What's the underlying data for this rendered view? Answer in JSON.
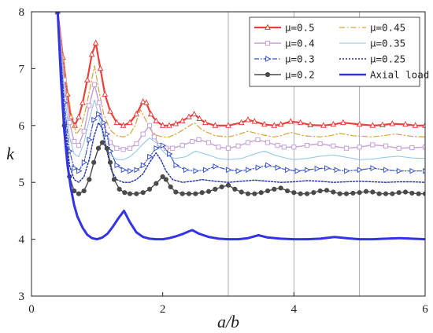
{
  "chart_data": {
    "type": "line",
    "xlabel": "a/b",
    "ylabel": "k",
    "xlim": [
      0,
      6
    ],
    "ylim": [
      3,
      8
    ],
    "x_ticks": [
      0,
      2,
      4,
      6
    ],
    "y_ticks": [
      3,
      4,
      5,
      6,
      7,
      8
    ],
    "x_tick_labels": [
      "0",
      "2",
      "4",
      "6"
    ],
    "y_tick_labels": [
      "3",
      "4",
      "5",
      "6",
      "7",
      "8"
    ],
    "vertical_reference_lines": [
      3,
      4,
      5
    ],
    "legend_position": "top-right",
    "series": [
      {
        "name": "μ=0.5",
        "color": "#e8403c",
        "marker": "triangle",
        "dash": "solid",
        "width": 2.2,
        "x": [
          0.4,
          0.48,
          0.55,
          0.6,
          0.66,
          0.72,
          0.78,
          0.85,
          0.92,
          0.98,
          1.05,
          1.12,
          1.2,
          1.3,
          1.4,
          1.5,
          1.6,
          1.7,
          1.75,
          1.82,
          1.9,
          2.0,
          2.1,
          2.2,
          2.3,
          2.4,
          2.48,
          2.56,
          2.65,
          2.8,
          3.0,
          3.2,
          3.3,
          3.4,
          3.55,
          3.7,
          3.8,
          3.95,
          4.1,
          4.25,
          4.45,
          4.6,
          4.75,
          5.0,
          5.2,
          5.35,
          5.5,
          5.7,
          5.85,
          6.0
        ],
        "y": [
          8.0,
          7.2,
          6.55,
          6.15,
          6.0,
          6.15,
          6.4,
          6.8,
          7.25,
          7.45,
          7.0,
          6.55,
          6.25,
          6.05,
          6.0,
          6.05,
          6.2,
          6.42,
          6.4,
          6.2,
          6.08,
          6.0,
          6.0,
          6.03,
          6.08,
          6.15,
          6.2,
          6.12,
          6.05,
          6.0,
          6.0,
          6.05,
          6.1,
          6.07,
          6.02,
          6.0,
          6.02,
          6.07,
          6.05,
          6.01,
          6.0,
          6.02,
          6.05,
          6.02,
          6.0,
          6.01,
          6.03,
          6.02,
          6.0,
          6.0
        ]
      },
      {
        "name": "μ=0.45",
        "color": "#d6a23c",
        "marker": "none",
        "dash": "7 3 1.5 3",
        "width": 1.2,
        "x": [
          0.4,
          0.5,
          0.6,
          0.68,
          0.75,
          0.82,
          0.9,
          0.96,
          1.03,
          1.1,
          1.2,
          1.3,
          1.4,
          1.5,
          1.58,
          1.66,
          1.74,
          1.82,
          1.9,
          2.0,
          2.1,
          2.2,
          2.35,
          2.48,
          2.6,
          2.8,
          3.0,
          3.15,
          3.3,
          3.5,
          3.7,
          3.8,
          3.95,
          4.15,
          4.4,
          4.55,
          4.7,
          4.9,
          5.2,
          5.35,
          5.55,
          5.8,
          6.0
        ],
        "y": [
          8.0,
          7.0,
          6.25,
          5.85,
          5.95,
          6.25,
          6.7,
          7.05,
          6.6,
          6.2,
          5.92,
          5.82,
          5.8,
          5.85,
          6.0,
          6.28,
          6.1,
          5.92,
          5.83,
          5.8,
          5.8,
          5.85,
          5.95,
          6.05,
          5.92,
          5.82,
          5.8,
          5.84,
          5.9,
          5.84,
          5.8,
          5.82,
          5.88,
          5.82,
          5.8,
          5.82,
          5.86,
          5.82,
          5.8,
          5.82,
          5.85,
          5.81,
          5.8
        ]
      },
      {
        "name": "μ=0.4",
        "color": "#c79fd8",
        "marker": "square",
        "dash": "solid",
        "width": 1.4,
        "x": [
          0.4,
          0.5,
          0.58,
          0.65,
          0.72,
          0.8,
          0.88,
          0.96,
          1.03,
          1.1,
          1.2,
          1.3,
          1.4,
          1.5,
          1.6,
          1.7,
          1.8,
          1.87,
          1.95,
          2.05,
          2.15,
          2.3,
          2.45,
          2.55,
          2.7,
          2.85,
          3.0,
          3.15,
          3.3,
          3.45,
          3.6,
          3.75,
          3.85,
          4.0,
          4.2,
          4.4,
          4.6,
          4.8,
          5.0,
          5.2,
          5.4,
          5.6,
          5.8,
          6.0
        ],
        "y": [
          8.0,
          6.8,
          6.05,
          5.72,
          5.65,
          5.9,
          6.35,
          6.72,
          6.4,
          6.0,
          5.7,
          5.6,
          5.58,
          5.6,
          5.68,
          5.85,
          6.0,
          5.8,
          5.65,
          5.6,
          5.6,
          5.65,
          5.72,
          5.75,
          5.7,
          5.62,
          5.6,
          5.64,
          5.7,
          5.75,
          5.7,
          5.65,
          5.62,
          5.62,
          5.65,
          5.68,
          5.64,
          5.6,
          5.62,
          5.66,
          5.64,
          5.6,
          5.61,
          5.62
        ]
      },
      {
        "name": "μ=0.35",
        "color": "#8ec3e8",
        "marker": "none",
        "dash": "solid",
        "width": 1.0,
        "x": [
          0.4,
          0.5,
          0.58,
          0.65,
          0.72,
          0.8,
          0.88,
          0.96,
          1.03,
          1.1,
          1.2,
          1.3,
          1.4,
          1.5,
          1.6,
          1.7,
          1.8,
          1.9,
          2.0,
          2.1,
          2.2,
          2.35,
          2.5,
          2.7,
          2.85,
          3.0,
          3.2,
          3.4,
          3.55,
          3.7,
          3.9,
          4.0,
          4.2,
          4.4,
          4.6,
          4.8,
          5.0,
          5.2,
          5.4,
          5.6,
          5.8,
          6.0
        ],
        "y": [
          8.0,
          6.6,
          5.8,
          5.5,
          5.45,
          5.7,
          6.1,
          6.45,
          6.15,
          5.75,
          5.48,
          5.4,
          5.4,
          5.45,
          5.55,
          5.68,
          5.78,
          5.7,
          5.55,
          5.45,
          5.42,
          5.45,
          5.55,
          5.48,
          5.42,
          5.4,
          5.42,
          5.5,
          5.55,
          5.48,
          5.42,
          5.4,
          5.42,
          5.46,
          5.48,
          5.44,
          5.4,
          5.41,
          5.44,
          5.46,
          5.43,
          5.42
        ]
      },
      {
        "name": "μ=0.3",
        "color": "#3a56c8",
        "marker": "triangle-right",
        "dash": "6 2 1.5 2",
        "width": 1.2,
        "x": [
          0.4,
          0.5,
          0.58,
          0.65,
          0.72,
          0.8,
          0.88,
          0.95,
          1.02,
          1.1,
          1.15,
          1.2,
          1.3,
          1.4,
          1.5,
          1.6,
          1.7,
          1.8,
          1.9,
          2.0,
          2.1,
          2.2,
          2.35,
          2.5,
          2.65,
          2.8,
          3.0,
          3.15,
          3.3,
          3.45,
          3.6,
          3.75,
          3.9,
          4.05,
          4.2,
          4.35,
          4.5,
          4.65,
          4.8,
          5.0,
          5.2,
          5.4,
          5.6,
          5.8,
          6.0
        ],
        "y": [
          8.0,
          6.4,
          5.55,
          5.25,
          5.2,
          5.35,
          5.75,
          6.1,
          6.2,
          6.05,
          5.85,
          5.55,
          5.3,
          5.22,
          5.2,
          5.22,
          5.3,
          5.45,
          5.6,
          5.65,
          5.5,
          5.3,
          5.22,
          5.2,
          5.22,
          5.28,
          5.22,
          5.2,
          5.22,
          5.26,
          5.3,
          5.26,
          5.22,
          5.2,
          5.22,
          5.24,
          5.25,
          5.22,
          5.2,
          5.22,
          5.25,
          5.22,
          5.2,
          5.2,
          5.2
        ]
      },
      {
        "name": "μ=0.25",
        "color": "#1f2fa8",
        "marker": "none",
        "dash": "2 2",
        "width": 1.4,
        "x": [
          0.4,
          0.5,
          0.58,
          0.65,
          0.72,
          0.8,
          0.88,
          0.95,
          1.02,
          1.08,
          1.15,
          1.22,
          1.3,
          1.4,
          1.5,
          1.6,
          1.7,
          1.8,
          1.9,
          1.97,
          2.05,
          2.15,
          2.3,
          2.45,
          2.6,
          2.8,
          3.0,
          3.2,
          3.4,
          3.6,
          3.8,
          4.0,
          4.2,
          4.4,
          4.6,
          4.8,
          5.0,
          5.2,
          5.4,
          5.6,
          5.8,
          6.0
        ],
        "y": [
          8.0,
          6.2,
          5.3,
          5.05,
          5.0,
          5.1,
          5.4,
          5.8,
          6.05,
          5.95,
          5.55,
          5.2,
          5.05,
          5.0,
          5.0,
          5.05,
          5.15,
          5.35,
          5.52,
          5.4,
          5.2,
          5.05,
          5.0,
          5.02,
          5.05,
          5.02,
          5.0,
          5.02,
          5.04,
          5.02,
          5.0,
          5.01,
          5.03,
          5.02,
          5.0,
          5.01,
          5.02,
          5.01,
          5.0,
          5.01,
          5.01,
          5.0
        ]
      },
      {
        "name": "μ=0.2",
        "color": "#4a4a4a",
        "marker": "circle",
        "dash": "solid",
        "width": 1.4,
        "x": [
          0.4,
          0.5,
          0.58,
          0.65,
          0.72,
          0.8,
          0.88,
          0.95,
          1.02,
          1.08,
          1.15,
          1.2,
          1.26,
          1.34,
          1.42,
          1.5,
          1.6,
          1.7,
          1.8,
          1.9,
          2.0,
          2.05,
          2.12,
          2.2,
          2.3,
          2.4,
          2.5,
          2.6,
          2.7,
          2.8,
          2.9,
          3.0,
          3.1,
          3.2,
          3.3,
          3.4,
          3.5,
          3.6,
          3.7,
          3.8,
          3.9,
          4.0,
          4.1,
          4.2,
          4.3,
          4.4,
          4.5,
          4.6,
          4.7,
          4.8,
          4.9,
          5.0,
          5.1,
          5.2,
          5.3,
          5.4,
          5.5,
          5.6,
          5.7,
          5.8,
          5.9,
          6.0
        ],
        "y": [
          8.0,
          6.0,
          5.1,
          4.85,
          4.8,
          4.85,
          5.05,
          5.35,
          5.6,
          5.7,
          5.6,
          5.35,
          5.05,
          4.88,
          4.82,
          4.8,
          4.8,
          4.82,
          4.88,
          4.98,
          5.1,
          5.05,
          4.92,
          4.83,
          4.8,
          4.8,
          4.8,
          4.82,
          4.84,
          4.88,
          4.92,
          4.95,
          4.88,
          4.83,
          4.8,
          4.8,
          4.82,
          4.85,
          4.88,
          4.9,
          4.85,
          4.82,
          4.8,
          4.8,
          4.82,
          4.85,
          4.86,
          4.83,
          4.8,
          4.8,
          4.81,
          4.82,
          4.84,
          4.83,
          4.8,
          4.8,
          4.8,
          4.82,
          4.83,
          4.81,
          4.8,
          4.8
        ]
      },
      {
        "name": "Axial load",
        "color": "#3333e6",
        "marker": "none",
        "dash": "solid",
        "width": 3.0,
        "x": [
          0.4,
          0.45,
          0.5,
          0.55,
          0.6,
          0.65,
          0.7,
          0.78,
          0.85,
          0.92,
          1.0,
          1.08,
          1.16,
          1.24,
          1.32,
          1.41,
          1.5,
          1.6,
          1.7,
          1.8,
          1.9,
          2.0,
          2.1,
          2.2,
          2.3,
          2.4,
          2.45,
          2.55,
          2.7,
          2.85,
          3.0,
          3.15,
          3.3,
          3.46,
          3.6,
          3.8,
          4.0,
          4.2,
          4.4,
          4.62,
          4.8,
          5.0,
          5.2,
          5.4,
          5.6,
          5.8,
          6.0
        ],
        "y": [
          8.0,
          6.8,
          5.9,
          5.3,
          4.9,
          4.6,
          4.4,
          4.2,
          4.08,
          4.02,
          4.0,
          4.03,
          4.1,
          4.22,
          4.36,
          4.5,
          4.3,
          4.12,
          4.04,
          4.01,
          4.0,
          4.0,
          4.02,
          4.05,
          4.09,
          4.14,
          4.16,
          4.1,
          4.04,
          4.01,
          4.0,
          4.0,
          4.02,
          4.07,
          4.03,
          4.01,
          4.0,
          4.0,
          4.01,
          4.04,
          4.02,
          4.0,
          4.0,
          4.01,
          4.02,
          4.01,
          4.0
        ]
      }
    ]
  }
}
